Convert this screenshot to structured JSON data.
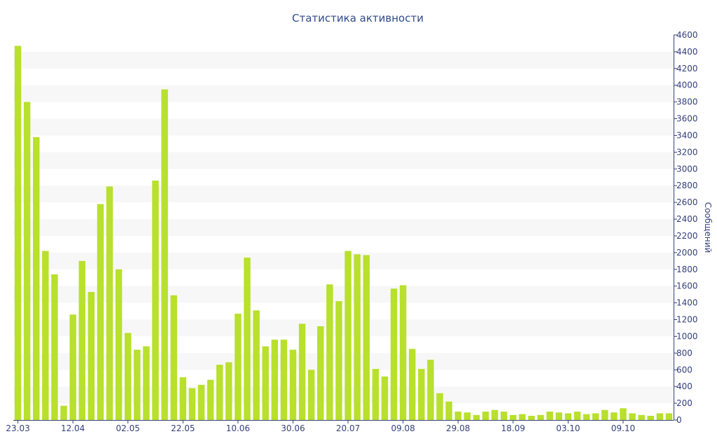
{
  "chart_data": {
    "type": "bar",
    "title": "Статистика активности",
    "xlabel": "",
    "ylabel": "Сообщений",
    "y_axis_side": "right",
    "ylim": [
      0,
      4600
    ],
    "y_ticks": [
      0,
      200,
      400,
      600,
      800,
      1000,
      1200,
      1400,
      1600,
      1800,
      2000,
      2200,
      2400,
      2600,
      2800,
      3000,
      3200,
      3400,
      3600,
      3800,
      4000,
      4200,
      4400,
      4600
    ],
    "bar_color": "#b8e02c",
    "band_color": "#f7f7f7",
    "x_tick_labels": [
      {
        "index": 0,
        "label": "23.03"
      },
      {
        "index": 6,
        "label": "12.04"
      },
      {
        "index": 12,
        "label": "02.05"
      },
      {
        "index": 18,
        "label": "22.05"
      },
      {
        "index": 24,
        "label": "10.06"
      },
      {
        "index": 30,
        "label": "30.06"
      },
      {
        "index": 36,
        "label": "20.07"
      },
      {
        "index": 42,
        "label": "09.08"
      },
      {
        "index": 48,
        "label": "29.08"
      },
      {
        "index": 54,
        "label": "18.09"
      },
      {
        "index": 60,
        "label": "03.10"
      },
      {
        "index": 66,
        "label": "09.10"
      }
    ],
    "values": [
      4470,
      3800,
      3380,
      2020,
      1740,
      170,
      1260,
      1900,
      1530,
      2580,
      2790,
      1800,
      1040,
      840,
      880,
      2860,
      3950,
      1490,
      510,
      380,
      420,
      480,
      660,
      690,
      1270,
      1940,
      1310,
      880,
      960,
      960,
      840,
      1150,
      600,
      1120,
      1620,
      1420,
      2020,
      1980,
      1970,
      610,
      520,
      1570,
      1610,
      850,
      610,
      720,
      320,
      220,
      100,
      90,
      60,
      100,
      120,
      100,
      60,
      70,
      50,
      60,
      100,
      90,
      80,
      100,
      70,
      80,
      120,
      90,
      140,
      80,
      60,
      50,
      80,
      80
    ]
  }
}
